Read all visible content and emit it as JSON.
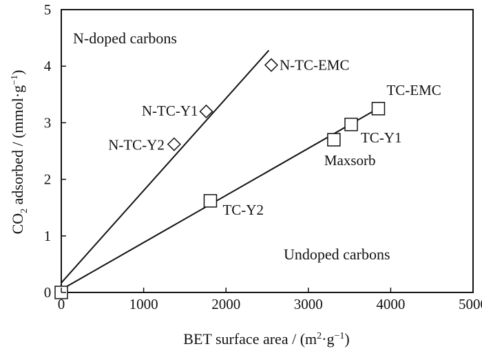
{
  "chart_data": {
    "type": "scatter",
    "title": "",
    "xlabel_main": "BET surface area / (m",
    "xlabel_sup1": "2",
    "xlabel_mid": "·g",
    "xlabel_sup2": "−1",
    "xlabel_end": ")",
    "ylabel_pre": "CO",
    "ylabel_sub": "2",
    "ylabel_post": " adsorbed / (mmol·g",
    "ylabel_sup": "−1",
    "ylabel_end": ")",
    "xlim": [
      0,
      5000
    ],
    "ylim": [
      0,
      5
    ],
    "x_ticks": [
      0,
      1000,
      2000,
      3000,
      4000,
      5000
    ],
    "x_tick_labels": [
      "0",
      "1000",
      "2000",
      "3000",
      "4000",
      "5000"
    ],
    "y_ticks": [
      0,
      1,
      2,
      3,
      4,
      5
    ],
    "y_tick_labels": [
      "0",
      "1",
      "2",
      "3",
      "4",
      "5"
    ],
    "grid": false,
    "region_labels": [
      "N-doped carbons",
      "Undoped carbons"
    ],
    "series": [
      {
        "marker": "diamond",
        "points": [
          {
            "label": "N-TC-EMC",
            "x": 2550,
            "y": 4.02
          },
          {
            "label": "N-TC-Y1",
            "x": 1760,
            "y": 3.2
          },
          {
            "label": "N-TC-Y2",
            "x": 1370,
            "y": 2.62
          },
          {
            "label": "",
            "x": 0,
            "y": 0
          }
        ],
        "fit_line": {
          "x": [
            0,
            2520
          ],
          "y": [
            0.17,
            4.28
          ]
        }
      },
      {
        "marker": "square",
        "points": [
          {
            "label": "TC-EMC",
            "x": 3850,
            "y": 3.25
          },
          {
            "label": "TC-Y1",
            "x": 3520,
            "y": 2.97
          },
          {
            "label": "Maxsorb",
            "x": 3310,
            "y": 2.7
          },
          {
            "label": "TC-Y2",
            "x": 1810,
            "y": 1.62
          },
          {
            "label": "",
            "x": 0,
            "y": 0
          }
        ],
        "fit_line": {
          "x": [
            0,
            3880
          ],
          "y": [
            0.05,
            3.28
          ]
        }
      }
    ]
  }
}
